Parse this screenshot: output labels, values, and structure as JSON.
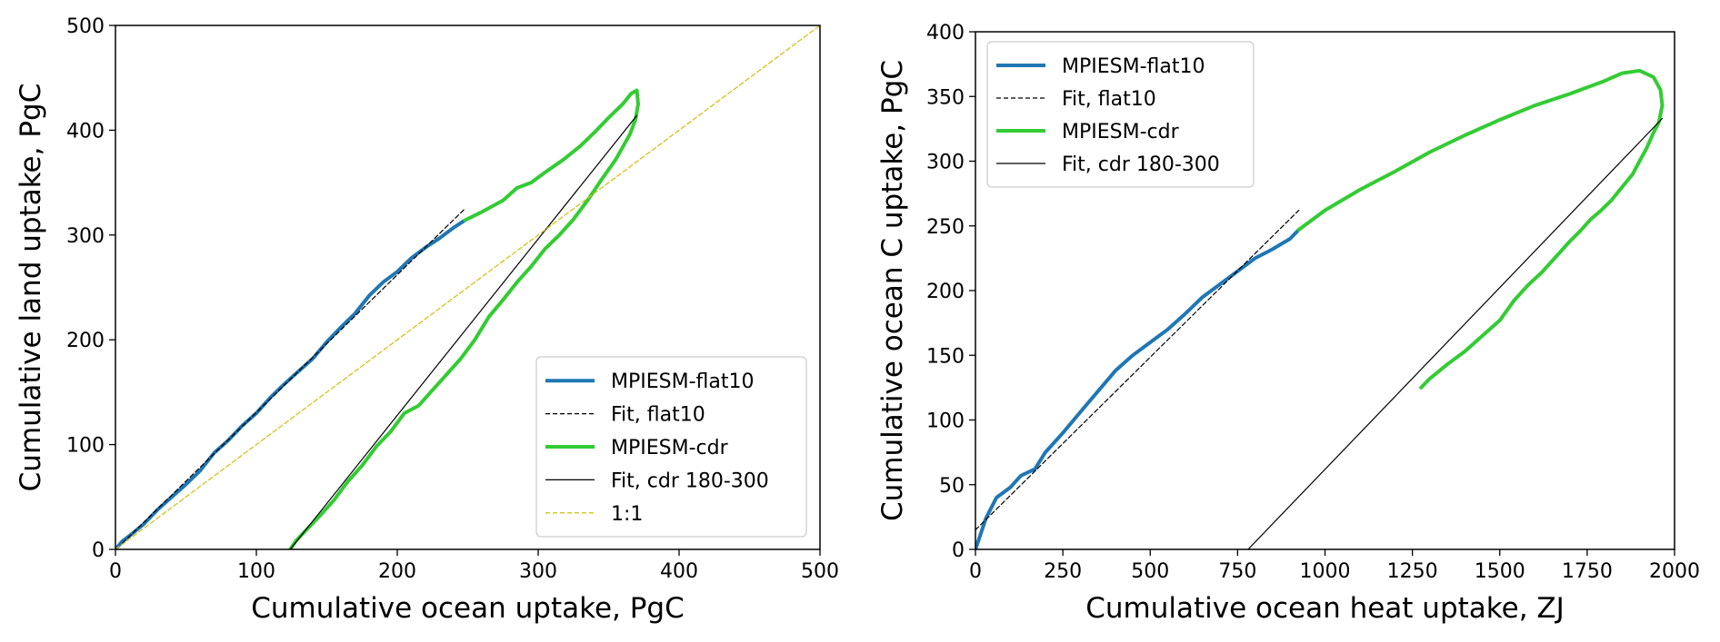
{
  "chart_data": [
    {
      "type": "line",
      "xlabel": "Cumulative ocean uptake, PgC",
      "ylabel": "Cumulative land uptake, PgC",
      "xlim": [
        0,
        500
      ],
      "ylim": [
        0,
        500
      ],
      "xticks": [
        0,
        100,
        200,
        300,
        400,
        500
      ],
      "yticks": [
        0,
        100,
        200,
        300,
        400,
        500
      ],
      "grid": false,
      "legend_position": "lower-right",
      "series": [
        {
          "name": "MPIESM-flat10",
          "color": "#1f77b4",
          "style": "solid",
          "x": [
            0,
            5,
            10,
            20,
            30,
            40,
            50,
            60,
            70,
            80,
            90,
            100,
            110,
            120,
            130,
            140,
            150,
            160,
            170,
            180,
            190,
            200,
            210,
            220,
            230,
            240,
            248
          ],
          "y": [
            0,
            8,
            13,
            24,
            38,
            50,
            62,
            75,
            92,
            104,
            118,
            130,
            145,
            158,
            170,
            182,
            198,
            212,
            225,
            242,
            255,
            265,
            278,
            288,
            297,
            307,
            314
          ]
        },
        {
          "name": "Fit, flat10",
          "color": "#000000",
          "style": "dashed",
          "x": [
            5,
            248
          ],
          "y": [
            6,
            325
          ]
        },
        {
          "name": "MPIESM-cdr",
          "color": "#33cc33",
          "style": "solid",
          "x": [
            248,
            260,
            275,
            285,
            295,
            305,
            318,
            330,
            340,
            350,
            360,
            366,
            370,
            371,
            369,
            365,
            355,
            345,
            335,
            325,
            315,
            305,
            295,
            285,
            275,
            265,
            255,
            245,
            235,
            225,
            215,
            205,
            195,
            185,
            175,
            165,
            155,
            145,
            135,
            128,
            124
          ],
          "y": [
            314,
            322,
            333,
            345,
            350,
            360,
            372,
            385,
            398,
            412,
            425,
            435,
            438,
            425,
            410,
            396,
            372,
            353,
            333,
            315,
            300,
            287,
            270,
            255,
            238,
            222,
            200,
            182,
            167,
            152,
            137,
            130,
            112,
            98,
            80,
            65,
            47,
            32,
            18,
            8,
            0
          ]
        },
        {
          "name": "Fit, cdr 180-300",
          "color": "#000000",
          "style": "solid",
          "x": [
            124,
            370
          ],
          "y": [
            0,
            414
          ]
        },
        {
          "name": "1:1",
          "color": "#d4c21a",
          "style": "dashed",
          "x": [
            0,
            500
          ],
          "y": [
            0,
            500
          ]
        }
      ]
    },
    {
      "type": "line",
      "xlabel": "Cumulative ocean heat uptake, ZJ",
      "ylabel": "Cumulative ocean C uptake, PgC",
      "xlim": [
        0,
        2000
      ],
      "ylim": [
        0,
        400
      ],
      "xticks": [
        0,
        250,
        500,
        750,
        1000,
        1250,
        1500,
        1750,
        2000
      ],
      "yticks": [
        0,
        50,
        100,
        150,
        200,
        250,
        300,
        350,
        400
      ],
      "grid": false,
      "legend_position": "top-left",
      "series": [
        {
          "name": "MPIESM-flat10",
          "color": "#1f77b4",
          "style": "solid",
          "x": [
            0,
            15,
            30,
            60,
            100,
            130,
            170,
            200,
            250,
            300,
            350,
            400,
            450,
            500,
            550,
            600,
            650,
            700,
            750,
            800,
            850,
            900,
            925
          ],
          "y": [
            0,
            12,
            24,
            40,
            48,
            57,
            62,
            75,
            90,
            106,
            122,
            138,
            150,
            160,
            170,
            182,
            195,
            205,
            215,
            225,
            232,
            240,
            247
          ]
        },
        {
          "name": "Fit, flat10",
          "color": "#000000",
          "style": "dashed",
          "x": [
            0,
            925
          ],
          "y": [
            15,
            262
          ]
        },
        {
          "name": "MPIESM-cdr",
          "color": "#33cc33",
          "style": "solid",
          "x": [
            925,
            1000,
            1100,
            1200,
            1300,
            1400,
            1500,
            1600,
            1700,
            1800,
            1850,
            1900,
            1940,
            1960,
            1965,
            1955,
            1940,
            1920,
            1900,
            1880,
            1850,
            1820,
            1790,
            1760,
            1730,
            1700,
            1660,
            1620,
            1580,
            1540,
            1500,
            1450,
            1400,
            1350,
            1300,
            1275
          ],
          "y": [
            247,
            262,
            278,
            292,
            307,
            320,
            332,
            343,
            352,
            362,
            368,
            370,
            365,
            355,
            343,
            330,
            322,
            310,
            300,
            290,
            280,
            270,
            262,
            255,
            246,
            238,
            226,
            214,
            204,
            192,
            177,
            165,
            153,
            143,
            132,
            125
          ]
        },
        {
          "name": "Fit, cdr 180-300",
          "color": "#000000",
          "style": "solid",
          "x": [
            780,
            1965
          ],
          "y": [
            0,
            333
          ]
        }
      ]
    }
  ]
}
